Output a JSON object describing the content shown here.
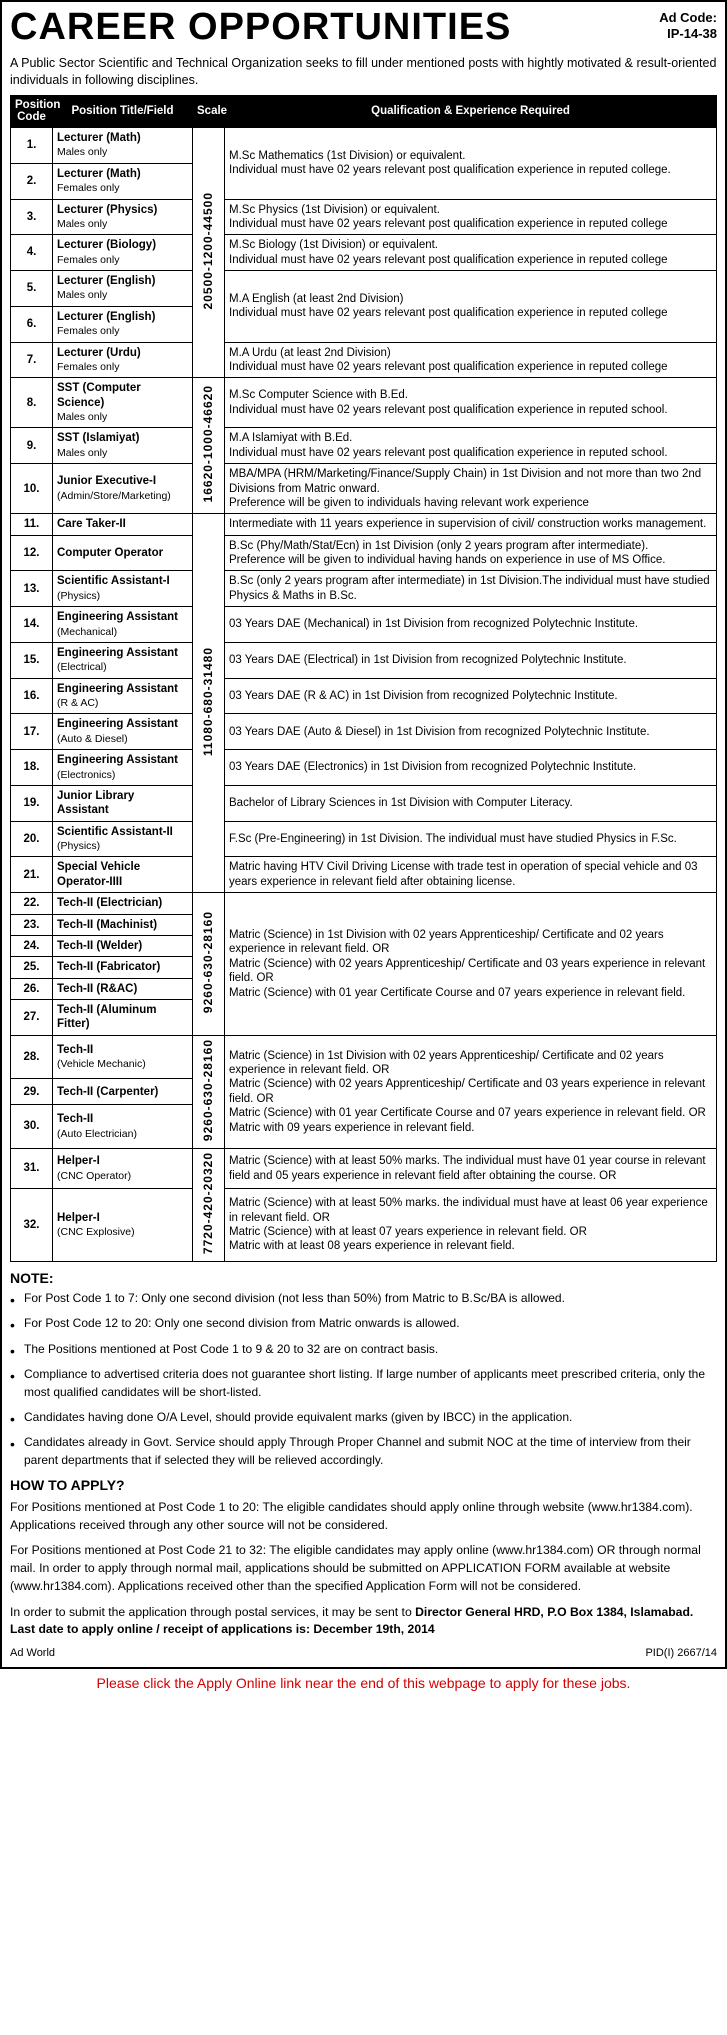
{
  "header": {
    "title": "CAREER OPPORTUNITIES",
    "ad_code_label": "Ad Code:",
    "ad_code_value": "IP-14-38"
  },
  "intro": "A Public Sector Scientific and Technical Organization seeks to fill under mentioned posts with hightly motivated & result-oriented individuals in following disciplines.",
  "columns": {
    "code": "Position Code",
    "title": "Position Title/Field",
    "scale": "Scale",
    "qual": "Qualification & Experience Required"
  },
  "col_widths": {
    "code": "42px",
    "title": "140px",
    "scale": "32px",
    "qual": "auto"
  },
  "scales": {
    "s1": {
      "text": "20500-1200-44500",
      "rowspan": 7
    },
    "s2": {
      "text": "16620-1000-46620",
      "rowspan": 3
    },
    "s3": {
      "text": "11080-680-31480",
      "rowspan": 11
    },
    "s4": {
      "text": "9260-630-28160",
      "rowspan": 6
    },
    "s5": {
      "text": "9260-630-28160",
      "rowspan": 3
    },
    "s6": {
      "text": "7720-420-20320",
      "rowspan": 2
    }
  },
  "rows": [
    {
      "code": "1.",
      "title": "Lecturer (Math)",
      "sub": "Males only",
      "scale": "s1",
      "qual_span": 2,
      "qual": "M.Sc Mathematics (1st  Division) or equivalent.\nIndividual must have 02 years relevant post qualification experience in reputed college."
    },
    {
      "code": "2.",
      "title": "Lecturer (Math)",
      "sub": "Females only"
    },
    {
      "code": "3.",
      "title": "Lecturer (Physics)",
      "sub": "Males only",
      "qual": "M.Sc Physics (1st  Division) or equivalent.\nIndividual must have 02 years relevant post qualification experience in reputed college"
    },
    {
      "code": "4.",
      "title": "Lecturer (Biology)",
      "sub": "Females only",
      "qual": "M.Sc Biology (1st Division) or equivalent.\nIndividual must have 02 years relevant post qualification experience in reputed college"
    },
    {
      "code": "5.",
      "title": "Lecturer (English)",
      "sub": "Males only",
      "qual_span": 2,
      "qual": "M.A English (at least 2nd Division)\nIndividual must have 02 years relevant post qualification experience in reputed college"
    },
    {
      "code": "6.",
      "title": "Lecturer (English)",
      "sub": "Females only"
    },
    {
      "code": "7.",
      "title": "Lecturer (Urdu)",
      "sub": "Females only",
      "qual": "M.A Urdu (at least 2nd Division)\nIndividual must have 02 years relevant post qualification experience in reputed college"
    },
    {
      "code": "8.",
      "title": "SST (Computer Science)",
      "sub": "Males only",
      "scale": "s2",
      "qual": "M.Sc Computer Science with B.Ed.\nIndividual must have 02 years relevant post qualification experience in reputed school."
    },
    {
      "code": "9.",
      "title": "SST (Islamiyat)",
      "sub": "Males only",
      "qual": "M.A Islamiyat  with B.Ed.\nIndividual must have 02 years relevant post qualification experience in reputed school."
    },
    {
      "code": "10.",
      "title": "Junior Executive-I",
      "sub": "(Admin/Store/Marketing)",
      "qual": "MBA/MPA (HRM/Marketing/Finance/Supply Chain) in 1st Division and not more than two 2nd Divisions from Matric onward.\nPreference will be given to individuals having relevant work experience"
    },
    {
      "code": "11.",
      "title": "Care Taker-II",
      "sub": "",
      "scale": "s3",
      "qual": "Intermediate with 11 years experience in supervision of civil/ construction works management."
    },
    {
      "code": "12.",
      "title": "Computer Operator",
      "sub": "",
      "qual": "B.Sc (Phy/Math/Stat/Ecn) in 1st Division (only 2 years program after intermediate).\nPreference will be given to individual having hands on experience in use of MS Office."
    },
    {
      "code": "13.",
      "title": "Scientific Assistant-I",
      "sub": "(Physics)",
      "qual": "B.Sc (only 2 years program after intermediate) in 1st Division.The individual must have studied Physics & Maths in B.Sc."
    },
    {
      "code": "14.",
      "title": "Engineering Assistant",
      "sub": "(Mechanical)",
      "qual": "03 Years DAE (Mechanical)  in 1st Division from recognized Polytechnic Institute."
    },
    {
      "code": "15.",
      "title": "Engineering Assistant",
      "sub": "(Electrical)",
      "qual": "03 Years DAE (Electrical) in 1st Division from recognized Polytechnic Institute."
    },
    {
      "code": "16.",
      "title": "Engineering Assistant",
      "sub": "(R & AC)",
      "qual": "03 Years DAE (R & AC)  in 1st Division from recognized Polytechnic Institute."
    },
    {
      "code": "17.",
      "title": "Engineering Assistant",
      "sub": "(Auto & Diesel)",
      "qual": "03 Years DAE (Auto & Diesel)  in 1st Division from recognized Polytechnic Institute."
    },
    {
      "code": "18.",
      "title": "Engineering Assistant",
      "sub": "(Electronics)",
      "qual": "03 Years DAE (Electronics)  in 1st Division from recognized Polytechnic Institute."
    },
    {
      "code": "19.",
      "title": "Junior Library Assistant",
      "sub": "",
      "qual": "Bachelor of Library Sciences in 1st Division with Computer Literacy."
    },
    {
      "code": "20.",
      "title": "Scientific Assistant-II",
      "sub": "(Physics)",
      "qual": "F.Sc (Pre-Engineering) in 1st Division. The individual must have studied Physics in F.Sc."
    },
    {
      "code": "21.",
      "title": "Special Vehicle Operator-IIII",
      "sub": "",
      "qual": "Matric having HTV Civil Driving License with trade test in operation of special vehicle and 03 years experience in relevant field after obtaining license."
    },
    {
      "code": "22.",
      "title": "Tech-II (Electrician)",
      "sub": "",
      "scale": "s4",
      "qual_span": 6,
      "qual": "Matric (Science) in 1st Division with 02 years Apprenticeship/ Certificate and 02 years experience in relevant field. OR\nMatric (Science) with 02 years Apprenticeship/ Certificate and 03 years experience in relevant field. OR\nMatric (Science) with 01 year Certificate Course and 07 years experience in relevant field."
    },
    {
      "code": "23.",
      "title": "Tech-II (Machinist)",
      "sub": ""
    },
    {
      "code": "24.",
      "title": "Tech-II (Welder)",
      "sub": ""
    },
    {
      "code": "25.",
      "title": "Tech-II (Fabricator)",
      "sub": ""
    },
    {
      "code": "26.",
      "title": "Tech-II (R&AC)",
      "sub": ""
    },
    {
      "code": "27.",
      "title": "Tech-II (Aluminum Fitter)",
      "sub": ""
    },
    {
      "code": "28.",
      "title": "Tech-II",
      "sub": "(Vehicle Mechanic)",
      "scale": "s5",
      "qual_span": 3,
      "qual": "Matric (Science) in 1st Division with 02 years Apprenticeship/ Certificate and 02 years experience in relevant field. OR\nMatric (Science) with 02 years Apprenticeship/ Certificate and 03 years experience in relevant field. OR\nMatric (Science) with 01 year Certificate Course and 07 years experience in relevant field. OR\nMatric with 09 years experience in relevant field."
    },
    {
      "code": "29.",
      "title": "Tech-II (Carpenter)",
      "sub": ""
    },
    {
      "code": "30.",
      "title": "Tech-II",
      "sub": "(Auto Electrician)"
    },
    {
      "code": "31.",
      "title": "Helper-I",
      "sub": "(CNC Operator)",
      "scale": "s6",
      "qual": "Matric (Science) with at least 50% marks. The individual must have 01 year course in relevant field and 05 years experience in relevant field after obtaining the course. OR"
    },
    {
      "code": "32.",
      "title": "Helper-I",
      "sub": "(CNC Explosive)",
      "qual": "Matric (Science) with at least 50% marks. the individual must have at least 06 year experience in relevant field. OR\nMatric (Science) with at least 07 years experience in relevant field. OR\nMatric with at least 08 years experience in relevant field."
    }
  ],
  "note_header": "NOTE:",
  "notes": [
    "For Post Code 1 to 7: Only one second division (not less than 50%) from Matric to B.Sc/BA is allowed.",
    "For Post Code 12 to 20: Only one second division from Matric onwards is allowed.",
    "The Positions mentioned at Post Code 1 to 9 & 20 to 32 are on contract basis.",
    "Compliance to advertised criteria does not guarantee short listing. If large number of applicants meet prescribed criteria, only the most qualified candidates will be short-listed.",
    "Candidates having done O/A Level, should provide equivalent marks (given by IBCC) in the application.",
    "Candidates already in Govt. Service should apply Through Proper Channel and submit NOC at the time of interview from their parent departments that if selected they will be relieved accordingly."
  ],
  "howto_header": "HOW TO APPLY?",
  "howto": [
    "For Positions mentioned at Post Code 1 to 20: The eligible candidates should apply online through website (www.hr1384.com). Applications received through any other source will not be considered.",
    "For Positions mentioned at Post Code 21 to 32: The eligible candidates may apply online (www.hr1384.com) OR through normal mail. In order to apply through normal mail, applications should be submitted on APPLICATION FORM available at website (www.hr1384.com). Applications received other than the specified Application Form will not be considered.",
    "In order to submit the application through postal services, it may be sent to <b>Director General HRD, P.O Box 1384, Islamabad. Last date to apply online / receipt of applications is: December 19th, 2014</b>"
  ],
  "footer": {
    "left": "Ad World",
    "right": "PID(I) 2667/14"
  },
  "apply_note": "Please click the Apply Online link near the end of this webpage to apply for these jobs."
}
